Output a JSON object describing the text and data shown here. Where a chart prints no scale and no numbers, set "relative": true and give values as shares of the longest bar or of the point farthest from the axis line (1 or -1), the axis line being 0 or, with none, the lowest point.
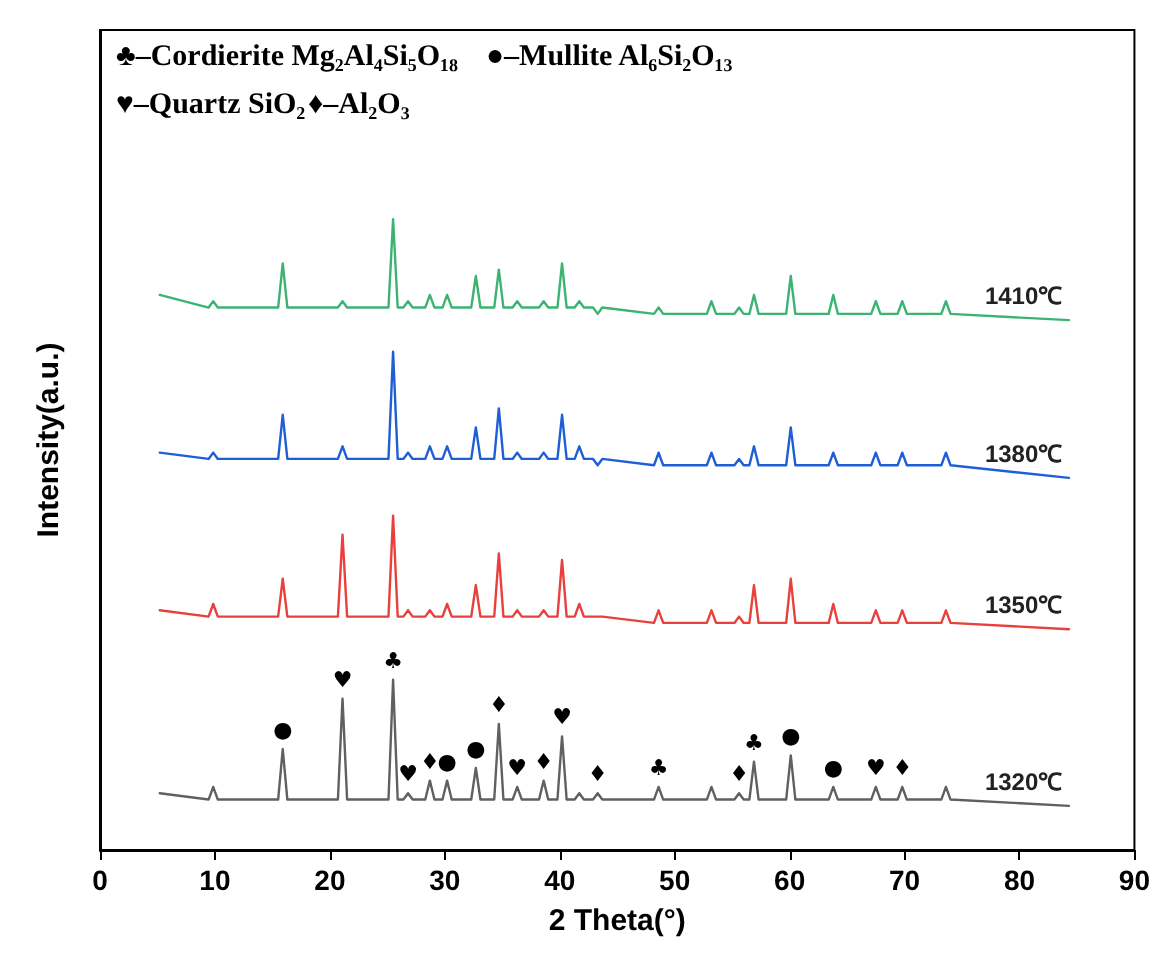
{
  "chart_data": {
    "type": "line",
    "relative": true,
    "xlabel": "2 Theta(°)",
    "ylabel": "Intensity(a.u.)",
    "xlim": [
      0,
      90
    ],
    "xticks": [
      0,
      10,
      20,
      30,
      40,
      50,
      60,
      70,
      80,
      90
    ],
    "legend": false,
    "grid": false,
    "marker": "none",
    "line_style": "solid",
    "x": [
      5.2,
      9.45,
      9.85,
      10.25,
      15.5,
      15.9,
      16.3,
      20.7,
      21.1,
      21.5,
      25.1,
      25.5,
      25.9,
      26.4,
      26.8,
      27.2,
      28.3,
      28.7,
      29.1,
      29.8,
      30.2,
      30.6,
      32.3,
      32.7,
      33.1,
      34.3,
      34.7,
      35.1,
      35.9,
      36.3,
      36.7,
      38.2,
      38.6,
      39.0,
      39.8,
      40.2,
      40.6,
      41.3,
      41.7,
      42.1,
      42.9,
      43.3,
      43.7,
      48.2,
      48.6,
      49.0,
      52.8,
      53.2,
      53.6,
      55.2,
      55.6,
      56.0,
      56.5,
      56.9,
      57.3,
      59.7,
      60.1,
      60.5,
      63.4,
      63.8,
      64.2,
      67.1,
      67.5,
      67.9,
      69.4,
      69.8,
      70.2,
      73.2,
      73.6,
      74.0,
      84.3
    ],
    "series": [
      {
        "name": "1410℃",
        "color": "#3cb371",
        "values": [
          0.88,
          0.86,
          0.87,
          0.86,
          0.86,
          0.93,
          0.86,
          0.86,
          0.87,
          0.86,
          0.86,
          1.0,
          0.86,
          0.86,
          0.87,
          0.86,
          0.86,
          0.88,
          0.86,
          0.86,
          0.88,
          0.86,
          0.86,
          0.91,
          0.86,
          0.86,
          0.92,
          0.86,
          0.86,
          0.87,
          0.86,
          0.86,
          0.87,
          0.86,
          0.86,
          0.93,
          0.86,
          0.86,
          0.87,
          0.86,
          0.86,
          0.85,
          0.86,
          0.85,
          0.86,
          0.85,
          0.85,
          0.87,
          0.85,
          0.85,
          0.86,
          0.85,
          0.85,
          0.88,
          0.85,
          0.85,
          0.91,
          0.85,
          0.85,
          0.88,
          0.85,
          0.85,
          0.87,
          0.85,
          0.85,
          0.87,
          0.85,
          0.85,
          0.87,
          0.85,
          0.84
        ]
      },
      {
        "name": "1380℃",
        "color": "#1f5fd6",
        "values": [
          0.63,
          0.62,
          0.63,
          0.62,
          0.62,
          0.69,
          0.62,
          0.62,
          0.64,
          0.62,
          0.62,
          0.79,
          0.62,
          0.62,
          0.63,
          0.62,
          0.62,
          0.64,
          0.62,
          0.62,
          0.64,
          0.62,
          0.62,
          0.67,
          0.62,
          0.62,
          0.7,
          0.62,
          0.62,
          0.63,
          0.62,
          0.62,
          0.63,
          0.62,
          0.62,
          0.69,
          0.62,
          0.62,
          0.64,
          0.62,
          0.62,
          0.61,
          0.62,
          0.61,
          0.63,
          0.61,
          0.61,
          0.63,
          0.61,
          0.61,
          0.62,
          0.61,
          0.61,
          0.64,
          0.61,
          0.61,
          0.67,
          0.61,
          0.61,
          0.63,
          0.61,
          0.61,
          0.63,
          0.61,
          0.61,
          0.63,
          0.61,
          0.61,
          0.63,
          0.61,
          0.59
        ]
      },
      {
        "name": "1350℃",
        "color": "#e8413c",
        "values": [
          0.38,
          0.37,
          0.39,
          0.37,
          0.37,
          0.43,
          0.37,
          0.37,
          0.5,
          0.37,
          0.37,
          0.53,
          0.37,
          0.37,
          0.38,
          0.37,
          0.37,
          0.38,
          0.37,
          0.37,
          0.39,
          0.37,
          0.37,
          0.42,
          0.37,
          0.37,
          0.47,
          0.37,
          0.37,
          0.38,
          0.37,
          0.37,
          0.38,
          0.37,
          0.37,
          0.46,
          0.37,
          0.37,
          0.39,
          0.37,
          0.37,
          0.37,
          0.37,
          0.36,
          0.38,
          0.36,
          0.36,
          0.38,
          0.36,
          0.36,
          0.37,
          0.36,
          0.36,
          0.42,
          0.36,
          0.36,
          0.43,
          0.36,
          0.36,
          0.39,
          0.36,
          0.36,
          0.38,
          0.36,
          0.36,
          0.38,
          0.36,
          0.36,
          0.38,
          0.36,
          0.35
        ]
      },
      {
        "name": "1320℃",
        "color": "#606060",
        "values": [
          0.09,
          0.08,
          0.1,
          0.08,
          0.08,
          0.16,
          0.08,
          0.08,
          0.24,
          0.08,
          0.08,
          0.27,
          0.08,
          0.08,
          0.09,
          0.08,
          0.08,
          0.11,
          0.08,
          0.08,
          0.11,
          0.08,
          0.08,
          0.13,
          0.08,
          0.08,
          0.2,
          0.08,
          0.08,
          0.1,
          0.08,
          0.08,
          0.11,
          0.08,
          0.08,
          0.18,
          0.08,
          0.08,
          0.09,
          0.08,
          0.08,
          0.09,
          0.08,
          0.08,
          0.1,
          0.08,
          0.08,
          0.1,
          0.08,
          0.08,
          0.09,
          0.08,
          0.08,
          0.14,
          0.08,
          0.08,
          0.15,
          0.08,
          0.08,
          0.1,
          0.08,
          0.08,
          0.1,
          0.08,
          0.08,
          0.1,
          0.08,
          0.08,
          0.1,
          0.08,
          0.07
        ]
      }
    ],
    "annotations": [
      "♣–Cordierite Mg₂Al₄Si₅O₁₈",
      "●–Mullite Al₆Si₂O₁₃",
      "♥–Quartz SiO₂",
      "♦–Al₂O₃",
      {
        "text": "●",
        "x": 15.9,
        "y": 0.16
      },
      {
        "text": "♥",
        "x": 21.1,
        "y": 0.24
      },
      {
        "text": "♣",
        "x": 25.5,
        "y": 0.27
      },
      {
        "text": "♥",
        "x": 26.8,
        "y": 0.09
      },
      {
        "text": "♦",
        "x": 28.7,
        "y": 0.11
      },
      {
        "text": "●",
        "x": 30.2,
        "y": 0.11
      },
      {
        "text": "●",
        "x": 32.7,
        "y": 0.13
      },
      {
        "text": "♦",
        "x": 34.7,
        "y": 0.2
      },
      {
        "text": "♥",
        "x": 36.3,
        "y": 0.1
      },
      {
        "text": "♦",
        "x": 38.6,
        "y": 0.11
      },
      {
        "text": "♥",
        "x": 40.2,
        "y": 0.18
      },
      {
        "text": "♦",
        "x": 43.3,
        "y": 0.09
      },
      {
        "text": "♣",
        "x": 48.6,
        "y": 0.1
      },
      {
        "text": "♦",
        "x": 55.6,
        "y": 0.09
      },
      {
        "text": "♣",
        "x": 56.9,
        "y": 0.14
      },
      {
        "text": "●",
        "x": 60.1,
        "y": 0.15
      },
      {
        "text": "●",
        "x": 63.8,
        "y": 0.1
      },
      {
        "text": "♥",
        "x": 67.5,
        "y": 0.1
      },
      {
        "text": "♦",
        "x": 69.8,
        "y": 0.1
      }
    ]
  }
}
